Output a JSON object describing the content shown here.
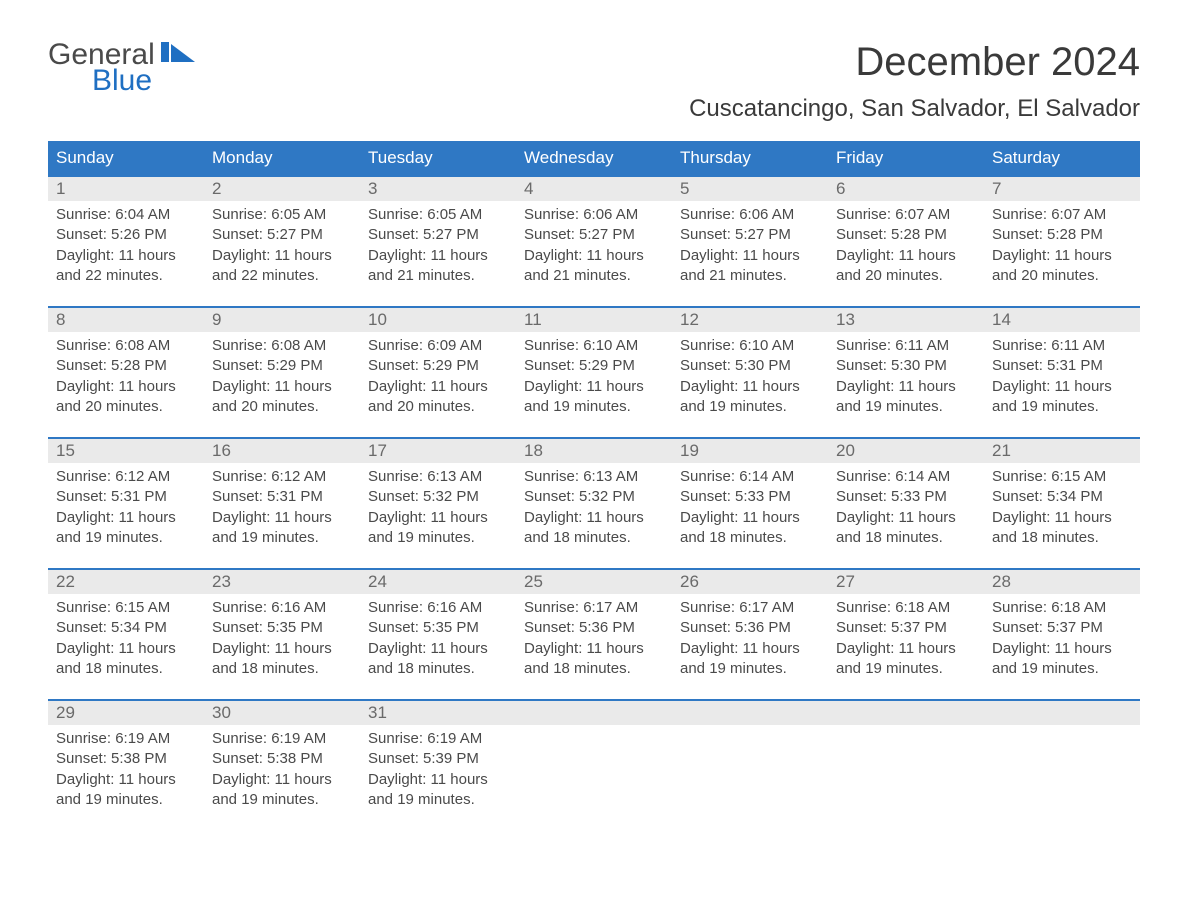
{
  "logo": {
    "line1": "General",
    "line2": "Blue",
    "icon_color": "#1f6fc2",
    "text_color_general": "#4a4a4a",
    "text_color_blue": "#1f6fc2"
  },
  "title": "December 2024",
  "location": "Cuscatancingo, San Salvador, El Salvador",
  "colors": {
    "header_bg": "#2f78c4",
    "header_text": "#ffffff",
    "daynum_bg": "#eaeaea",
    "week_border": "#2f78c4",
    "body_text": "#4a4a4a"
  },
  "fonts": {
    "title_size_pt": 30,
    "location_size_pt": 18,
    "header_size_pt": 13,
    "body_size_pt": 11
  },
  "day_headers": [
    "Sunday",
    "Monday",
    "Tuesday",
    "Wednesday",
    "Thursday",
    "Friday",
    "Saturday"
  ],
  "weeks": [
    {
      "nums": [
        "1",
        "2",
        "3",
        "4",
        "5",
        "6",
        "7"
      ],
      "cells": [
        {
          "sunrise": "Sunrise: 6:04 AM",
          "sunset": "Sunset: 5:26 PM",
          "day1": "Daylight: 11 hours",
          "day2": "and 22 minutes."
        },
        {
          "sunrise": "Sunrise: 6:05 AM",
          "sunset": "Sunset: 5:27 PM",
          "day1": "Daylight: 11 hours",
          "day2": "and 22 minutes."
        },
        {
          "sunrise": "Sunrise: 6:05 AM",
          "sunset": "Sunset: 5:27 PM",
          "day1": "Daylight: 11 hours",
          "day2": "and 21 minutes."
        },
        {
          "sunrise": "Sunrise: 6:06 AM",
          "sunset": "Sunset: 5:27 PM",
          "day1": "Daylight: 11 hours",
          "day2": "and 21 minutes."
        },
        {
          "sunrise": "Sunrise: 6:06 AM",
          "sunset": "Sunset: 5:27 PM",
          "day1": "Daylight: 11 hours",
          "day2": "and 21 minutes."
        },
        {
          "sunrise": "Sunrise: 6:07 AM",
          "sunset": "Sunset: 5:28 PM",
          "day1": "Daylight: 11 hours",
          "day2": "and 20 minutes."
        },
        {
          "sunrise": "Sunrise: 6:07 AM",
          "sunset": "Sunset: 5:28 PM",
          "day1": "Daylight: 11 hours",
          "day2": "and 20 minutes."
        }
      ]
    },
    {
      "nums": [
        "8",
        "9",
        "10",
        "11",
        "12",
        "13",
        "14"
      ],
      "cells": [
        {
          "sunrise": "Sunrise: 6:08 AM",
          "sunset": "Sunset: 5:28 PM",
          "day1": "Daylight: 11 hours",
          "day2": "and 20 minutes."
        },
        {
          "sunrise": "Sunrise: 6:08 AM",
          "sunset": "Sunset: 5:29 PM",
          "day1": "Daylight: 11 hours",
          "day2": "and 20 minutes."
        },
        {
          "sunrise": "Sunrise: 6:09 AM",
          "sunset": "Sunset: 5:29 PM",
          "day1": "Daylight: 11 hours",
          "day2": "and 20 minutes."
        },
        {
          "sunrise": "Sunrise: 6:10 AM",
          "sunset": "Sunset: 5:29 PM",
          "day1": "Daylight: 11 hours",
          "day2": "and 19 minutes."
        },
        {
          "sunrise": "Sunrise: 6:10 AM",
          "sunset": "Sunset: 5:30 PM",
          "day1": "Daylight: 11 hours",
          "day2": "and 19 minutes."
        },
        {
          "sunrise": "Sunrise: 6:11 AM",
          "sunset": "Sunset: 5:30 PM",
          "day1": "Daylight: 11 hours",
          "day2": "and 19 minutes."
        },
        {
          "sunrise": "Sunrise: 6:11 AM",
          "sunset": "Sunset: 5:31 PM",
          "day1": "Daylight: 11 hours",
          "day2": "and 19 minutes."
        }
      ]
    },
    {
      "nums": [
        "15",
        "16",
        "17",
        "18",
        "19",
        "20",
        "21"
      ],
      "cells": [
        {
          "sunrise": "Sunrise: 6:12 AM",
          "sunset": "Sunset: 5:31 PM",
          "day1": "Daylight: 11 hours",
          "day2": "and 19 minutes."
        },
        {
          "sunrise": "Sunrise: 6:12 AM",
          "sunset": "Sunset: 5:31 PM",
          "day1": "Daylight: 11 hours",
          "day2": "and 19 minutes."
        },
        {
          "sunrise": "Sunrise: 6:13 AM",
          "sunset": "Sunset: 5:32 PM",
          "day1": "Daylight: 11 hours",
          "day2": "and 19 minutes."
        },
        {
          "sunrise": "Sunrise: 6:13 AM",
          "sunset": "Sunset: 5:32 PM",
          "day1": "Daylight: 11 hours",
          "day2": "and 18 minutes."
        },
        {
          "sunrise": "Sunrise: 6:14 AM",
          "sunset": "Sunset: 5:33 PM",
          "day1": "Daylight: 11 hours",
          "day2": "and 18 minutes."
        },
        {
          "sunrise": "Sunrise: 6:14 AM",
          "sunset": "Sunset: 5:33 PM",
          "day1": "Daylight: 11 hours",
          "day2": "and 18 minutes."
        },
        {
          "sunrise": "Sunrise: 6:15 AM",
          "sunset": "Sunset: 5:34 PM",
          "day1": "Daylight: 11 hours",
          "day2": "and 18 minutes."
        }
      ]
    },
    {
      "nums": [
        "22",
        "23",
        "24",
        "25",
        "26",
        "27",
        "28"
      ],
      "cells": [
        {
          "sunrise": "Sunrise: 6:15 AM",
          "sunset": "Sunset: 5:34 PM",
          "day1": "Daylight: 11 hours",
          "day2": "and 18 minutes."
        },
        {
          "sunrise": "Sunrise: 6:16 AM",
          "sunset": "Sunset: 5:35 PM",
          "day1": "Daylight: 11 hours",
          "day2": "and 18 minutes."
        },
        {
          "sunrise": "Sunrise: 6:16 AM",
          "sunset": "Sunset: 5:35 PM",
          "day1": "Daylight: 11 hours",
          "day2": "and 18 minutes."
        },
        {
          "sunrise": "Sunrise: 6:17 AM",
          "sunset": "Sunset: 5:36 PM",
          "day1": "Daylight: 11 hours",
          "day2": "and 18 minutes."
        },
        {
          "sunrise": "Sunrise: 6:17 AM",
          "sunset": "Sunset: 5:36 PM",
          "day1": "Daylight: 11 hours",
          "day2": "and 19 minutes."
        },
        {
          "sunrise": "Sunrise: 6:18 AM",
          "sunset": "Sunset: 5:37 PM",
          "day1": "Daylight: 11 hours",
          "day2": "and 19 minutes."
        },
        {
          "sunrise": "Sunrise: 6:18 AM",
          "sunset": "Sunset: 5:37 PM",
          "day1": "Daylight: 11 hours",
          "day2": "and 19 minutes."
        }
      ]
    },
    {
      "nums": [
        "29",
        "30",
        "31",
        "",
        "",
        "",
        ""
      ],
      "cells": [
        {
          "sunrise": "Sunrise: 6:19 AM",
          "sunset": "Sunset: 5:38 PM",
          "day1": "Daylight: 11 hours",
          "day2": "and 19 minutes."
        },
        {
          "sunrise": "Sunrise: 6:19 AM",
          "sunset": "Sunset: 5:38 PM",
          "day1": "Daylight: 11 hours",
          "day2": "and 19 minutes."
        },
        {
          "sunrise": "Sunrise: 6:19 AM",
          "sunset": "Sunset: 5:39 PM",
          "day1": "Daylight: 11 hours",
          "day2": "and 19 minutes."
        },
        {
          "sunrise": "",
          "sunset": "",
          "day1": "",
          "day2": ""
        },
        {
          "sunrise": "",
          "sunset": "",
          "day1": "",
          "day2": ""
        },
        {
          "sunrise": "",
          "sunset": "",
          "day1": "",
          "day2": ""
        },
        {
          "sunrise": "",
          "sunset": "",
          "day1": "",
          "day2": ""
        }
      ]
    }
  ]
}
